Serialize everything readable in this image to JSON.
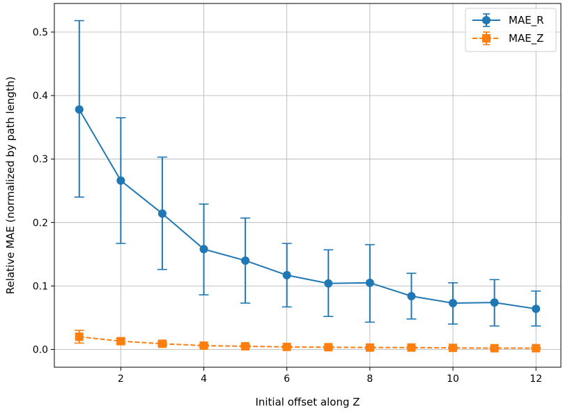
{
  "chart_data": {
    "type": "line",
    "title": "",
    "xlabel": "Initial offset along Z",
    "ylabel": "Relative MAE (normalized by path length)",
    "xlim": [
      0.4,
      12.6
    ],
    "ylim": [
      -0.028,
      0.545
    ],
    "xticks": [
      2,
      4,
      6,
      8,
      10,
      12
    ],
    "xtick_labels": [
      "2",
      "4",
      "6",
      "8",
      "10",
      "12"
    ],
    "yticks": [
      0.0,
      0.1,
      0.2,
      0.3,
      0.4,
      0.5
    ],
    "ytick_labels": [
      "0.0",
      "0.1",
      "0.2",
      "0.3",
      "0.4",
      "0.5"
    ],
    "grid": true,
    "legend_position": "top-right",
    "x": [
      1,
      2,
      3,
      4,
      5,
      6,
      7,
      8,
      9,
      10,
      11,
      12
    ],
    "series": [
      {
        "name": "MAE_R",
        "color": "#1f77b4",
        "marker": "circle",
        "linestyle": "solid",
        "values": [
          0.378,
          0.266,
          0.214,
          0.158,
          0.14,
          0.117,
          0.104,
          0.105,
          0.084,
          0.073,
          0.074,
          0.064
        ],
        "err_low": [
          0.24,
          0.167,
          0.126,
          0.086,
          0.073,
          0.067,
          0.052,
          0.043,
          0.048,
          0.04,
          0.037,
          0.037
        ],
        "err_high": [
          0.518,
          0.365,
          0.303,
          0.229,
          0.207,
          0.167,
          0.157,
          0.165,
          0.12,
          0.105,
          0.11,
          0.092
        ]
      },
      {
        "name": "MAE_Z",
        "color": "#ff7f0e",
        "marker": "square",
        "linestyle": "dashed",
        "values": [
          0.02,
          0.013,
          0.009,
          0.006,
          0.005,
          0.004,
          0.0035,
          0.003,
          0.003,
          0.0025,
          0.002,
          0.002
        ],
        "err_low": [
          0.01,
          0.009,
          0.006,
          0.004,
          0.003,
          0.0025,
          0.002,
          0.0018,
          0.0018,
          0.0015,
          0.0012,
          0.0012
        ],
        "err_high": [
          0.03,
          0.017,
          0.012,
          0.008,
          0.007,
          0.0055,
          0.005,
          0.0042,
          0.0042,
          0.0035,
          0.003,
          0.003
        ]
      }
    ]
  }
}
